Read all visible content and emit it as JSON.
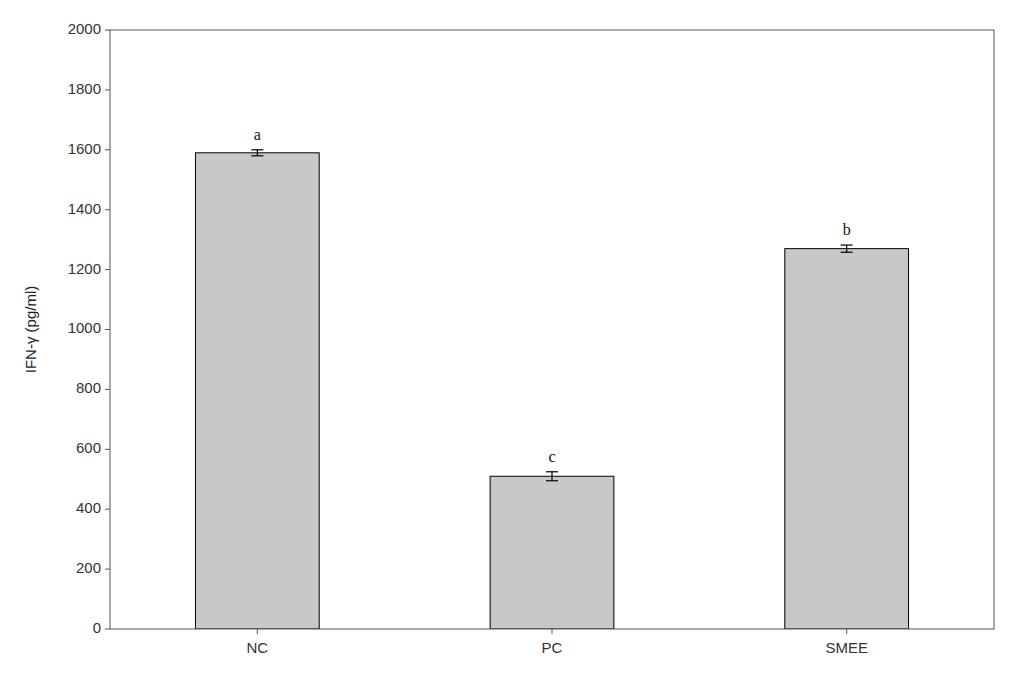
{
  "chart_data": {
    "type": "bar",
    "categories": [
      "NC",
      "PC",
      "SMEE"
    ],
    "values": [
      1590,
      510,
      1270
    ],
    "errors": [
      10,
      15,
      12
    ],
    "annotations": [
      "a",
      "c",
      "b"
    ],
    "color": "#c8c8c8",
    "ylabel": "IFN-γ (pg/ml)",
    "ylim": [
      0,
      2000
    ],
    "yticks": [
      0,
      200,
      400,
      600,
      800,
      1000,
      1200,
      1400,
      1600,
      1800,
      2000
    ],
    "grid": false
  }
}
